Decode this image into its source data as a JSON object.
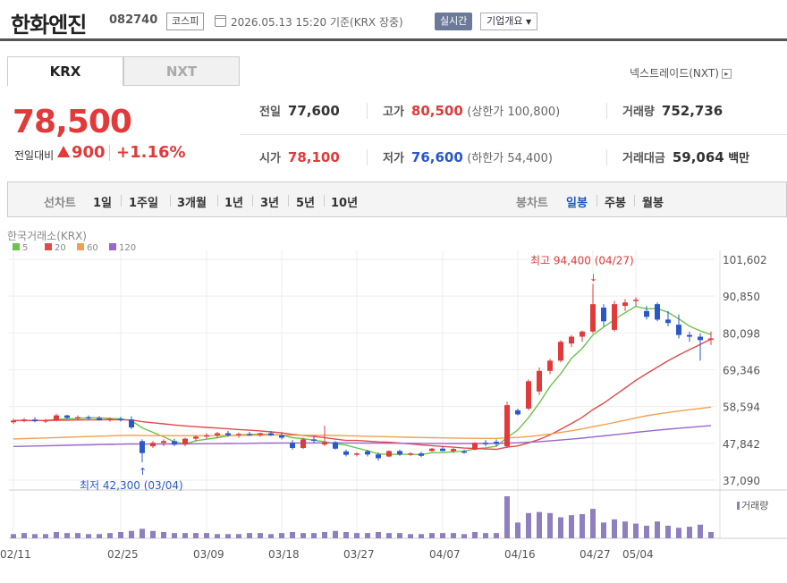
{
  "header": {
    "company_name": "한화엔진",
    "stock_code": "082740",
    "market": "코스피",
    "datetime": "2026.05.13 15:20",
    "basis": "기준(KRX 장중)",
    "realtime_label": "실시간",
    "company_overview_label": "기업개요"
  },
  "tabs": [
    "KRX",
    "NXT"
  ],
  "nxt_link": "넥스트레이드(NXT)",
  "price": {
    "current": "78,500",
    "change_label": "전일대비",
    "change": "900",
    "change_pct": "+1.16%"
  },
  "stats": {
    "prev_close_label": "전일",
    "prev_close": "77,600",
    "high_label": "고가",
    "high": "80,500",
    "upper_limit": "(상한가 100,800)",
    "volume_label": "거래량",
    "volume": "752,736",
    "open_label": "시가",
    "open": "78,100",
    "low_label": "저가",
    "low": "76,600",
    "lower_limit": "(하한가 54,400)",
    "amount_label": "거래대금",
    "amount": "59,064",
    "amount_unit": "백만"
  },
  "toolbar": {
    "line_label": "선차트",
    "line_periods": [
      "1일",
      "1주일",
      "3개월",
      "1년",
      "3년",
      "5년",
      "10년"
    ],
    "candle_label": "봉차트",
    "candle_periods": [
      "일봉",
      "주봉",
      "월봉"
    ],
    "active_candle": "일봉"
  },
  "colors": {
    "up": "#e03a3a",
    "down": "#2a58c9",
    "ma5": "#6cc24a",
    "ma20": "#e04a4a",
    "ma60": "#f0a050",
    "ma120": "#9966cc",
    "volume": "#8e7fbf"
  },
  "chart_data": {
    "type": "candlestick",
    "source_label": "한국거래소(KRX)",
    "legend": [
      "5",
      "20",
      "60",
      "120"
    ],
    "y_ticks": [
      101602,
      90850,
      80098,
      69346,
      58594,
      47842,
      37090
    ],
    "y_tick_labels": [
      "101,602",
      "90,850",
      "80,098",
      "69,346",
      "58,594",
      "47,842",
      "37,090"
    ],
    "ylim": [
      37090,
      101602
    ],
    "x_tick_labels": [
      "02/11",
      "02/25",
      "03/09",
      "03/18",
      "03/27",
      "04/07",
      "04/16",
      "04/27",
      "05/04"
    ],
    "x_tick_index": [
      0,
      10,
      18,
      25,
      32,
      40,
      47,
      54,
      58
    ],
    "high_annotation": "최고 94,400 (04/27)",
    "low_annotation": "최저 42,300 (03/04)",
    "high_index": 54,
    "low_index": 12,
    "volume_label": "거래량",
    "candles": [
      [
        54000,
        55000,
        53500,
        54500
      ],
      [
        54500,
        55200,
        54000,
        54800
      ],
      [
        54800,
        55500,
        54000,
        54300
      ],
      [
        54300,
        55000,
        53800,
        54600
      ],
      [
        54600,
        56500,
        54300,
        56000
      ],
      [
        56000,
        56200,
        55000,
        55300
      ],
      [
        55300,
        56000,
        54800,
        55500
      ],
      [
        55500,
        56000,
        54800,
        55200
      ],
      [
        55200,
        55800,
        54500,
        54600
      ],
      [
        54600,
        55400,
        54200,
        55000
      ],
      [
        55000,
        55600,
        54200,
        54800
      ],
      [
        54800,
        55800,
        52000,
        52500
      ],
      [
        48500,
        49000,
        42300,
        45000
      ],
      [
        47000,
        48500,
        46500,
        48000
      ],
      [
        48000,
        49000,
        47000,
        48500
      ],
      [
        48500,
        49200,
        47000,
        47500
      ],
      [
        47500,
        49500,
        47000,
        49200
      ],
      [
        49200,
        50200,
        48500,
        49800
      ],
      [
        49800,
        50800,
        49200,
        50200
      ],
      [
        50200,
        51200,
        49500,
        50800
      ],
      [
        50800,
        51500,
        49800,
        50200
      ],
      [
        50200,
        51000,
        49500,
        50600
      ],
      [
        50600,
        51200,
        50000,
        50300
      ],
      [
        50300,
        51000,
        49800,
        50800
      ],
      [
        50800,
        51500,
        50000,
        50200
      ],
      [
        50200,
        51000,
        49000,
        49500
      ],
      [
        48000,
        48800,
        46000,
        46500
      ],
      [
        46500,
        49500,
        46200,
        49000
      ],
      [
        49000,
        50000,
        48000,
        48600
      ],
      [
        47500,
        53000,
        47000,
        48200
      ],
      [
        48200,
        48500,
        46000,
        46300
      ],
      [
        45500,
        46000,
        44000,
        44500
      ],
      [
        44500,
        45200,
        44000,
        44900
      ],
      [
        45500,
        46000,
        44000,
        44600
      ],
      [
        44600,
        45200,
        42800,
        43500
      ],
      [
        44000,
        45800,
        43800,
        45600
      ],
      [
        45600,
        46000,
        44200,
        44600
      ],
      [
        44600,
        45300,
        44200,
        44900
      ],
      [
        44900,
        45400,
        43800,
        44200
      ],
      [
        45600,
        46500,
        45400,
        46300
      ],
      [
        46300,
        47000,
        45500,
        45600
      ],
      [
        45600,
        46500,
        45000,
        46200
      ],
      [
        45500,
        46000,
        44800,
        45300
      ],
      [
        46000,
        48200,
        45800,
        48000
      ],
      [
        48000,
        48800,
        47000,
        47600
      ],
      [
        48300,
        49000,
        47000,
        47800
      ],
      [
        47000,
        60000,
        46500,
        59000
      ],
      [
        57500,
        58000,
        56000,
        56300
      ],
      [
        58000,
        66500,
        57500,
        66000
      ],
      [
        63000,
        70000,
        62000,
        69000
      ],
      [
        69000,
        72500,
        68000,
        72000
      ],
      [
        72000,
        78000,
        71500,
        77500
      ],
      [
        77000,
        79500,
        76000,
        79000
      ],
      [
        79000,
        80800,
        77500,
        80500
      ],
      [
        80500,
        94400,
        80000,
        88500
      ],
      [
        87500,
        88500,
        82000,
        83500
      ],
      [
        81000,
        89500,
        80500,
        88500
      ],
      [
        88000,
        90000,
        86500,
        89000
      ],
      [
        89500,
        90500,
        88000,
        89800
      ],
      [
        86500,
        88000,
        84000,
        84800
      ],
      [
        88500,
        89000,
        83500,
        84000
      ],
      [
        84000,
        86500,
        82000,
        83000
      ],
      [
        82500,
        85500,
        78500,
        79500
      ],
      [
        79500,
        80500,
        77500,
        79000
      ],
      [
        79000,
        80000,
        72000,
        78000
      ],
      [
        78100,
        80500,
        76600,
        78500
      ]
    ],
    "volume": [
      4,
      5,
      4,
      4,
      6,
      5,
      5,
      4,
      4,
      5,
      6,
      7,
      9,
      7,
      6,
      5,
      5,
      5,
      5,
      4,
      4,
      4,
      5,
      5,
      4,
      5,
      6,
      5,
      5,
      6,
      7,
      6,
      5,
      5,
      6,
      5,
      5,
      4,
      4,
      5,
      5,
      5,
      4,
      6,
      5,
      5,
      40,
      15,
      24,
      25,
      24,
      20,
      22,
      23,
      28,
      15,
      18,
      16,
      14,
      12,
      16,
      12,
      10,
      11,
      13,
      6
    ]
  }
}
